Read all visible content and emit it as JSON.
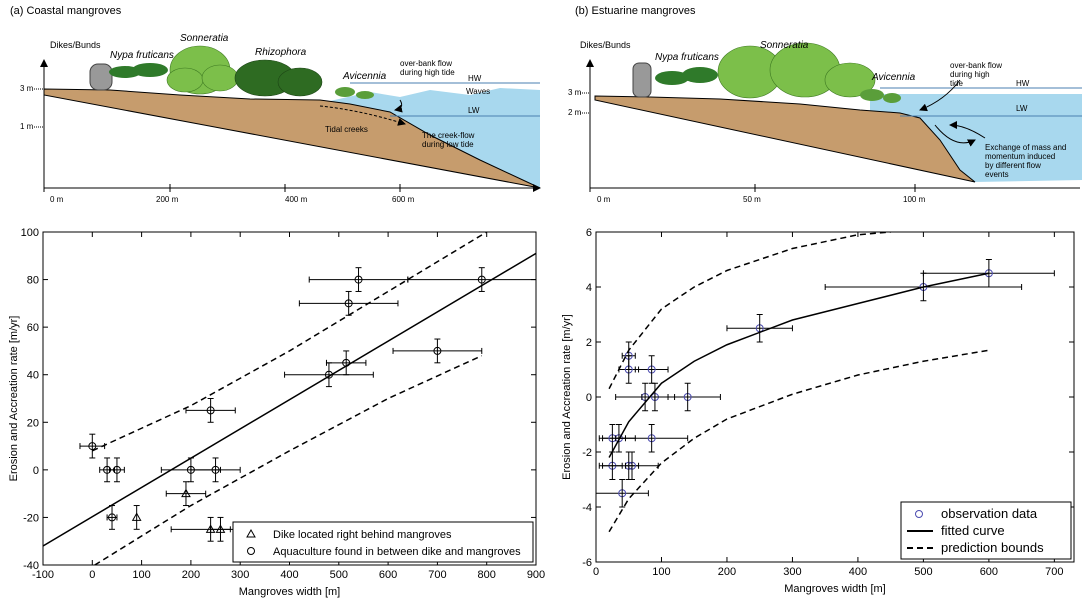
{
  "diagrams": [
    {
      "title": "(a) Coastal mangroves",
      "dike": "Dikes/Bunds",
      "species": [
        "Nypa fruticans",
        "Sonneratia",
        "Rhizophora",
        "Avicennia"
      ],
      "overbank": [
        "over-bank flow",
        "during high tide"
      ],
      "hw": "HW",
      "waves": "Waves",
      "lw": "LW",
      "tidal_creeks": "Tidal creeks",
      "creek_flow": [
        "The creek-flow",
        "during low tide"
      ],
      "heights": [
        "3 m",
        "1 m"
      ],
      "distances": [
        "0 m",
        "200 m",
        "400 m",
        "600 m"
      ]
    },
    {
      "title": "(b) Estuarine mangroves",
      "dike": "Dikes/Bunds",
      "species": [
        "Nypa fruticans",
        "Sonneratia",
        "Avicennia"
      ],
      "overbank": [
        "over-bank flow",
        "during high",
        "tide"
      ],
      "hw": "HW",
      "lw": "LW",
      "exchange": [
        "Exchange of mass and",
        "momentum induced",
        "by different flow",
        "events"
      ],
      "heights": [
        "3 m",
        "2 m"
      ],
      "distances": [
        "0 m",
        "50 m",
        "100 m"
      ]
    }
  ],
  "chart_data": [
    {
      "type": "scatter",
      "xlabel": "Mangroves width [m]",
      "ylabel": "Erosion and Accreation rate [m/yr]",
      "xlim": [
        -100,
        900
      ],
      "ylim": [
        -40,
        100
      ],
      "xticks": [
        -100,
        0,
        100,
        200,
        300,
        400,
        500,
        600,
        700,
        800,
        900
      ],
      "yticks": [
        -40,
        -20,
        0,
        20,
        40,
        60,
        80,
        100
      ],
      "legend": "lower right",
      "series": [
        {
          "name": "Dike located right behind mangroves",
          "kind": "points",
          "marker": "triangle",
          "color": "#000000",
          "x": [
            90,
            190,
            240,
            260
          ],
          "values": [
            -20,
            -10,
            -25,
            -25
          ],
          "xerr": [
            0,
            40,
            80,
            20
          ],
          "yerr": [
            5,
            5,
            5,
            5
          ]
        },
        {
          "name": "Aquaculture found in between dike and mangroves",
          "kind": "points",
          "marker": "circle",
          "color": "#000000",
          "x": [
            0,
            30,
            50,
            40,
            200,
            250,
            240,
            480,
            515,
            520,
            540,
            700,
            790
          ],
          "values": [
            10,
            0,
            0,
            -20,
            0,
            0,
            25,
            40,
            45,
            70,
            80,
            50,
            80
          ],
          "xerr": [
            25,
            15,
            15,
            10,
            60,
            50,
            50,
            90,
            40,
            100,
            100,
            90,
            150
          ],
          "yerr": [
            5,
            5,
            5,
            5,
            5,
            5,
            5,
            5,
            5,
            5,
            5,
            5,
            5
          ]
        },
        {
          "kind": "line",
          "style": "solid",
          "color": "#000000",
          "x": [
            -100,
            900
          ],
          "values": [
            -32,
            91
          ]
        },
        {
          "kind": "line",
          "style": "dashed",
          "color": "#000000",
          "x": [
            0,
            200,
            400,
            600,
            800
          ],
          "values": [
            8,
            27,
            50,
            75,
            100
          ]
        },
        {
          "kind": "line",
          "style": "dashed",
          "color": "#000000",
          "x": [
            5,
            200,
            400,
            600,
            790
          ],
          "values": [
            -40,
            -15,
            8,
            30,
            48
          ]
        }
      ]
    },
    {
      "type": "scatter",
      "xlabel": "Mangroves width [m]",
      "ylabel": "Erosion and Accreation rate [m/yr]",
      "xlim": [
        0,
        730
      ],
      "ylim": [
        -6,
        6
      ],
      "xticks": [
        0,
        100,
        200,
        300,
        400,
        500,
        600,
        700
      ],
      "yticks": [
        -6,
        -4,
        -2,
        0,
        2,
        4,
        6
      ],
      "legend": "lower right",
      "series": [
        {
          "name": "observation data",
          "kind": "points",
          "marker": "circle",
          "color": "#4b4bb0",
          "x": [
            600,
            500,
            250,
            50,
            50,
            85,
            75,
            90,
            140,
            35,
            25,
            85,
            25,
            50,
            55,
            40
          ],
          "values": [
            4.5,
            4,
            2.5,
            1.5,
            1,
            1,
            0,
            0,
            0,
            -1.5,
            -1.5,
            -1.5,
            -2.5,
            -2.5,
            -2.5,
            -3.5
          ],
          "xerr": [
            100,
            150,
            50,
            10,
            15,
            25,
            45,
            20,
            50,
            25,
            20,
            55,
            15,
            45,
            10,
            40
          ],
          "yerr": [
            0.5,
            0.5,
            0.5,
            0.5,
            0.5,
            0.5,
            0.5,
            0.5,
            0.5,
            0.5,
            0.5,
            0.5,
            0.5,
            0.5,
            0.5,
            0.5
          ]
        },
        {
          "name": "fitted curve",
          "kind": "line",
          "style": "solid",
          "color": "#000000",
          "x": [
            20,
            50,
            100,
            150,
            200,
            300,
            400,
            500,
            600
          ],
          "values": [
            -2.2,
            -0.9,
            0.5,
            1.3,
            1.9,
            2.8,
            3.4,
            4.0,
            4.5
          ]
        },
        {
          "name": "prediction bounds",
          "kind": "line",
          "style": "dashed",
          "color": "#000000",
          "x": [
            20,
            50,
            100,
            150,
            200,
            300,
            400,
            450
          ],
          "values": [
            0.3,
            1.7,
            3.2,
            4,
            4.6,
            5.4,
            5.9,
            6
          ]
        },
        {
          "kind": "line",
          "style": "dashed",
          "color": "#000000",
          "x": [
            20,
            50,
            100,
            150,
            200,
            300,
            400,
            500,
            600
          ],
          "values": [
            -4.9,
            -3.7,
            -2.4,
            -1.5,
            -0.8,
            0.1,
            0.8,
            1.3,
            1.7
          ]
        }
      ]
    }
  ]
}
